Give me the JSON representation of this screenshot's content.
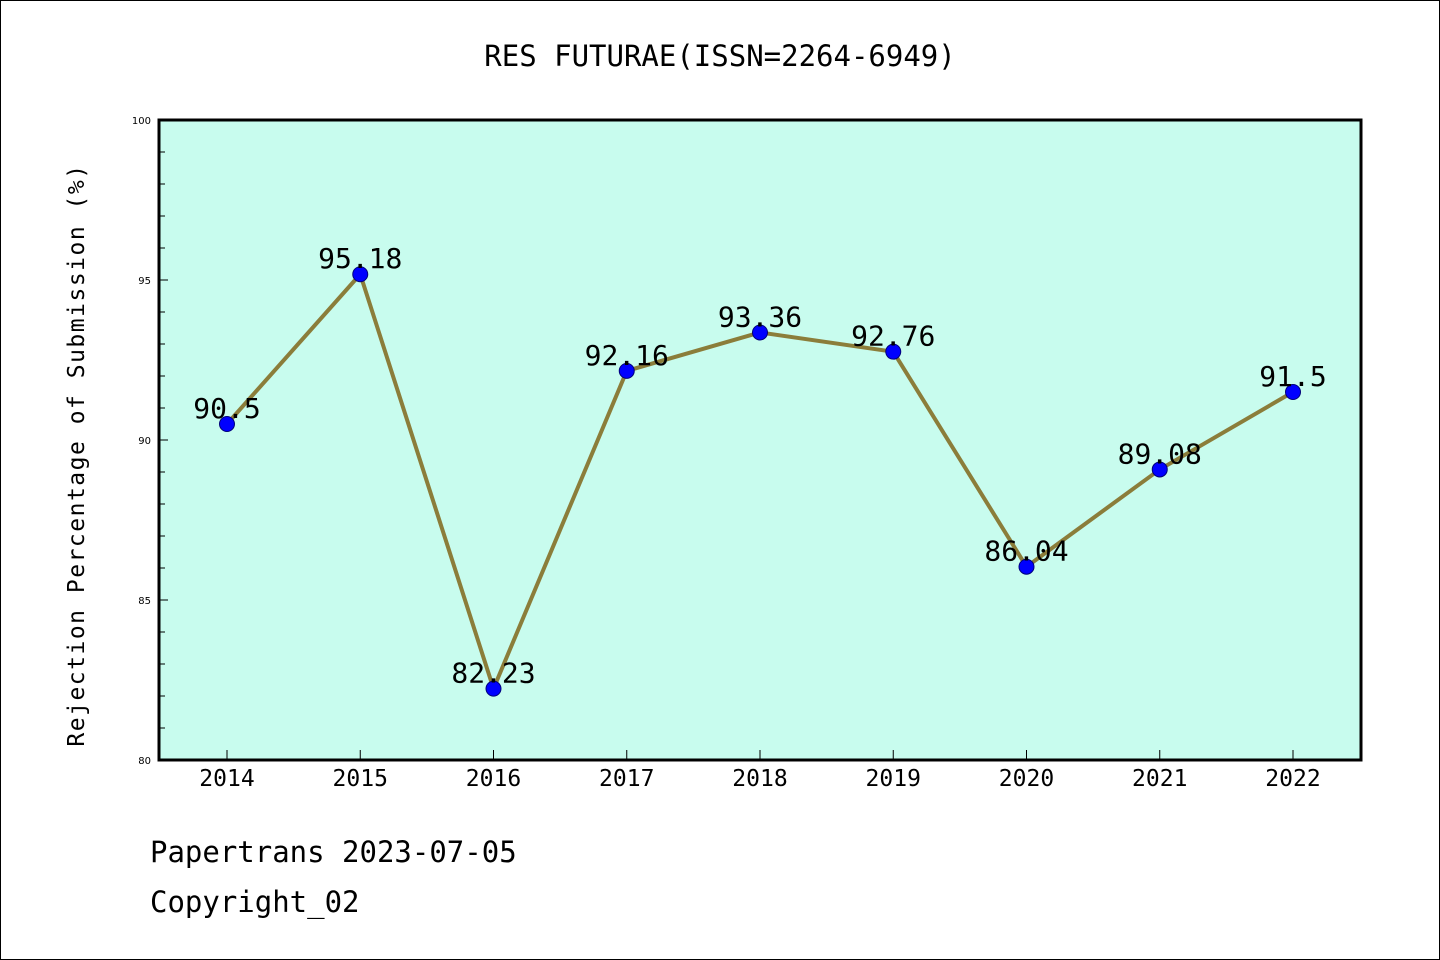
{
  "chart_data": {
    "type": "line",
    "title": "RES FUTURAE(ISSN=2264-6949)",
    "xlabel": "",
    "ylabel": "Rejection Percentage of Submission (%)",
    "categories": [
      "2014",
      "2015",
      "2016",
      "2017",
      "2018",
      "2019",
      "2020",
      "2021",
      "2022"
    ],
    "series": [
      {
        "values": [
          90.5,
          95.18,
          82.23,
          92.16,
          93.36,
          92.76,
          86.04,
          89.08,
          91.5
        ],
        "labels": [
          "90.5",
          "95.18",
          "82.23",
          "92.16",
          "93.36",
          "92.76",
          "86.04",
          "89.08",
          "91.5"
        ]
      }
    ],
    "ylim": [
      80,
      100
    ],
    "yticks": [
      80,
      85,
      90,
      95,
      100
    ],
    "grid": false,
    "colors": {
      "plot_background": "#c8fcee",
      "line": "#8b7d3a",
      "marker": "#0000ff"
    }
  },
  "footer": {
    "line1": "Papertrans 2023-07-05",
    "line2": "Copyright_02"
  }
}
